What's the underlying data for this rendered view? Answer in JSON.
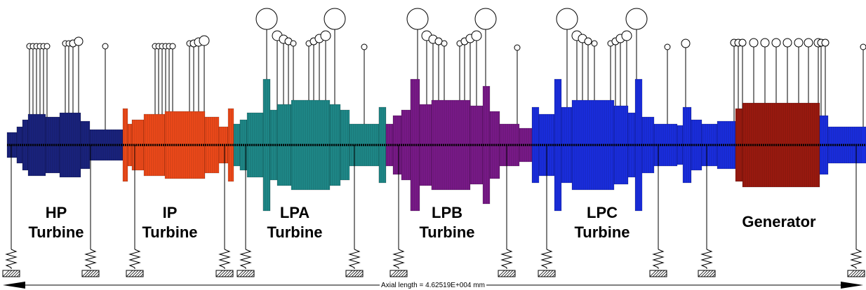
{
  "sections": [
    {
      "id": "hp",
      "name": "HP",
      "sub": "Turbine",
      "color": "#1a237e"
    },
    {
      "id": "ip",
      "name": "IP",
      "sub": "Turbine",
      "color": "#f04a1a"
    },
    {
      "id": "lpa",
      "name": "LPA",
      "sub": "Turbine",
      "color": "#1f8a8a"
    },
    {
      "id": "lpb",
      "name": "LPB",
      "sub": "Turbine",
      "color": "#7a1a8a"
    },
    {
      "id": "lpc",
      "name": "LPC",
      "sub": "Turbine",
      "color": "#1a2ee0"
    },
    {
      "id": "gen",
      "name": "Generator",
      "sub": "",
      "color": "#9c1a10"
    }
  ],
  "axial_label": "Axial length =  4.62519E+004 mm"
}
